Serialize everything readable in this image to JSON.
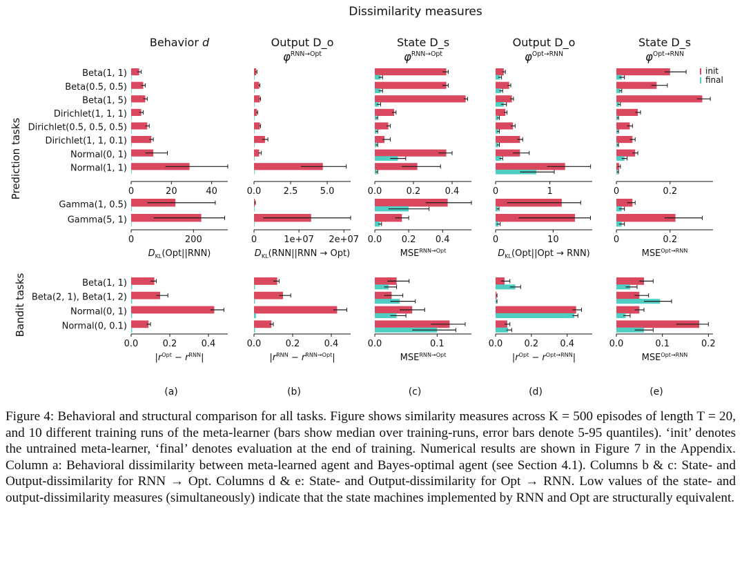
{
  "figure": {
    "title": "Dissimilarity measures",
    "group_labels": [
      "Prediction tasks",
      "Bandit tasks"
    ],
    "legend": [
      "init",
      "final"
    ],
    "colors": {
      "init": "#d9485e",
      "final": "#4fcfc4",
      "error": "#1a1a1a"
    }
  },
  "chart_data": [
    {
      "type": "bar",
      "orientation": "horizontal",
      "panel": "(a)",
      "row": "prediction",
      "header": "Behavior d",
      "categories": [
        "Beta(1, 1)",
        "Beta(0.5, 0.5)",
        "Beta(1, 5)",
        "Dirichlet(1, 1, 1)",
        "Dirichlet(0.5, 0.5, 0.5)",
        "Dirichlet(1, 1, 0.1)",
        "Normal(0, 1)",
        "Normal(1, 1)"
      ],
      "series": [
        {
          "name": "init",
          "values": [
            4,
            6,
            7,
            5,
            8,
            10,
            11,
            29
          ],
          "error_low": [
            3,
            5,
            6,
            4,
            7,
            9,
            7,
            17
          ],
          "error_high": [
            5,
            7,
            8,
            6,
            9,
            11,
            18,
            49
          ]
        },
        {
          "name": "final",
          "values": [
            0,
            0,
            0,
            0,
            0,
            0,
            0,
            0
          ]
        }
      ],
      "xlim": [
        0,
        48
      ],
      "xticks": [
        "0",
        "20",
        "40"
      ],
      "xlabel": ""
    },
    {
      "type": "bar",
      "orientation": "horizontal",
      "panel": "(b)",
      "row": "prediction",
      "header": "Output D_o",
      "subheader": "φ RNN→Opt",
      "categories": [
        "Beta(1, 1)",
        "Beta(0.5, 0.5)",
        "Beta(1, 5)",
        "Dirichlet(1, 1, 1)",
        "Dirichlet(0.5, 0.5, 0.5)",
        "Dirichlet(1, 1, 0.1)",
        "Normal(0, 1)",
        "Normal(1, 1)"
      ],
      "series": [
        {
          "name": "init",
          "values": [
            0.15,
            0.35,
            0.4,
            0.2,
            0.4,
            0.75,
            0.35,
            4.7
          ],
          "error_low": [
            0.1,
            0.3,
            0.35,
            0.15,
            0.35,
            0.55,
            0.3,
            3.2
          ],
          "error_high": [
            0.2,
            0.4,
            0.45,
            0.25,
            0.45,
            0.95,
            0.5,
            6.3
          ]
        },
        {
          "name": "final",
          "values": [
            0,
            0,
            0,
            0,
            0,
            0,
            0,
            0
          ]
        }
      ],
      "xlim": [
        0,
        6.6
      ],
      "xticks": [
        "0.0",
        "2.5",
        "5.0"
      ],
      "xlabel": ""
    },
    {
      "type": "bar",
      "orientation": "horizontal",
      "panel": "(c)",
      "row": "prediction",
      "header": "State D_s",
      "subheader": "φ RNN→Opt",
      "categories": [
        "Beta(1, 1)",
        "Beta(0.5, 0.5)",
        "Beta(1, 5)",
        "Dirichlet(1, 1, 1)",
        "Dirichlet(0.5, 0.5, 0.5)",
        "Dirichlet(1, 1, 0.1)",
        "Normal(0, 1)",
        "Normal(1, 1)"
      ],
      "series": [
        {
          "name": "init",
          "values": [
            0.37,
            0.37,
            0.47,
            0.1,
            0.07,
            0.05,
            0.37,
            0.22
          ],
          "error_low": [
            0.35,
            0.35,
            0.46,
            0.09,
            0.06,
            0.04,
            0.33,
            0.14
          ],
          "error_high": [
            0.38,
            0.38,
            0.48,
            0.11,
            0.08,
            0.08,
            0.4,
            0.34
          ]
        },
        {
          "name": "final",
          "values": [
            0.03,
            0.03,
            0.02,
            0.01,
            0.01,
            0.01,
            0.12,
            0.01
          ],
          "error_low": [
            0.02,
            0.02,
            0.01,
            0.005,
            0.005,
            0.005,
            0.08,
            0.005
          ],
          "error_high": [
            0.04,
            0.04,
            0.03,
            0.015,
            0.015,
            0.015,
            0.16,
            0.015
          ]
        }
      ],
      "xlim": [
        0,
        0.5
      ],
      "xticks": [
        "0.0",
        "0.2",
        "0.4"
      ],
      "xlabel": ""
    },
    {
      "type": "bar",
      "orientation": "horizontal",
      "panel": "(d)",
      "row": "prediction",
      "header": "Output D_o",
      "subheader": "φ Opt→RNN",
      "categories": [
        "Beta(1, 1)",
        "Beta(0.5, 0.5)",
        "Beta(1, 5)",
        "Dirichlet(1, 1, 1)",
        "Dirichlet(0.5, 0.5, 0.5)",
        "Dirichlet(1, 1, 0.1)",
        "Normal(0, 1)",
        "Normal(1, 1)"
      ],
      "series": [
        {
          "name": "init",
          "values": [
            0.15,
            0.25,
            0.3,
            0.18,
            0.32,
            0.45,
            0.45,
            1.28
          ],
          "error_low": [
            0.12,
            0.22,
            0.27,
            0.15,
            0.28,
            0.4,
            0.32,
            0.95
          ],
          "error_high": [
            0.18,
            0.28,
            0.33,
            0.21,
            0.36,
            0.5,
            0.62,
            1.75
          ]
        },
        {
          "name": "final",
          "values": [
            0.08,
            0.1,
            0.15,
            0.05,
            0.05,
            0.05,
            0.1,
            0.75
          ],
          "error_low": [
            0.05,
            0.07,
            0.1,
            0.03,
            0.03,
            0.03,
            0.07,
            0.45
          ],
          "error_high": [
            0.11,
            0.13,
            0.2,
            0.07,
            0.07,
            0.07,
            0.13,
            1.08
          ]
        }
      ],
      "xlim": [
        0,
        1.78
      ],
      "xticks": [
        "0",
        "1"
      ],
      "xlabel": ""
    },
    {
      "type": "bar",
      "orientation": "horizontal",
      "panel": "(e)",
      "row": "prediction",
      "header": "State D_s",
      "subheader": "φ Opt→RNN",
      "categories": [
        "Beta(1, 1)",
        "Beta(0.5, 0.5)",
        "Beta(1, 5)",
        "Dirichlet(1, 1, 1)",
        "Dirichlet(0.5, 0.5, 0.5)",
        "Dirichlet(1, 1, 0.1)",
        "Normal(0, 1)",
        "Normal(1, 1)"
      ],
      "series": [
        {
          "name": "init",
          "values": [
            0.2,
            0.15,
            0.32,
            0.08,
            0.05,
            0.06,
            0.07,
            0.01
          ],
          "error_low": [
            0.18,
            0.13,
            0.3,
            0.07,
            0.04,
            0.05,
            0.06,
            0.005
          ],
          "error_high": [
            0.26,
            0.19,
            0.35,
            0.09,
            0.06,
            0.07,
            0.08,
            0.015
          ]
        },
        {
          "name": "final",
          "values": [
            0.02,
            0.015,
            0.01,
            0.005,
            0.005,
            0.005,
            0.03,
            0.005
          ],
          "error_low": [
            0.01,
            0.01,
            0.005,
            0.002,
            0.002,
            0.002,
            0.02,
            0.002
          ],
          "error_high": [
            0.03,
            0.02,
            0.015,
            0.008,
            0.008,
            0.008,
            0.04,
            0.008
          ]
        }
      ],
      "xlim": [
        0,
        0.36
      ],
      "xticks": [
        "0",
        "0.2"
      ],
      "xlabel": ""
    },
    {
      "type": "bar",
      "orientation": "horizontal",
      "panel": "(a)",
      "row": "gamma",
      "categories": [
        "Gamma(1, 0.5)",
        "Gamma(5, 1)"
      ],
      "series": [
        {
          "name": "init",
          "values": [
            142,
            225
          ],
          "error_low": [
            52,
            72
          ],
          "error_high": [
            270,
            300
          ]
        },
        {
          "name": "final",
          "values": [
            0,
            0
          ]
        }
      ],
      "xlim": [
        0,
        310
      ],
      "xticks": [
        "0",
        "200"
      ],
      "xlabel": "D_KL(Opt||RNN)"
    },
    {
      "type": "bar",
      "orientation": "horizontal",
      "panel": "(b)",
      "row": "gamma",
      "categories": [
        "Gamma(1, 0.5)",
        "Gamma(5, 1)"
      ],
      "series": [
        {
          "name": "init",
          "values": [
            200000,
            12700000
          ],
          "error_low": [
            100000,
            2000000
          ],
          "error_high": [
            300000,
            23000000
          ]
        },
        {
          "name": "final",
          "values": [
            0,
            0
          ]
        }
      ],
      "xlim": [
        0,
        21500000
      ],
      "xticks": [
        "0",
        "1e+07",
        "2e+07"
      ],
      "xlabel": "D_KL(RNN||RNN → Opt)"
    },
    {
      "type": "bar",
      "orientation": "horizontal",
      "panel": "(c)",
      "row": "gamma",
      "categories": [
        "Gamma(1, 0.5)",
        "Gamma(5, 1)"
      ],
      "series": [
        {
          "name": "init",
          "values": [
            0.43,
            0.16
          ],
          "error_low": [
            0.3,
            0.12
          ],
          "error_high": [
            0.57,
            0.2
          ]
        },
        {
          "name": "final",
          "values": [
            0.2,
            0.03
          ],
          "error_low": [
            0.08,
            0.02
          ],
          "error_high": [
            0.32,
            0.04
          ]
        }
      ],
      "xlim": [
        0,
        0.57
      ],
      "xticks": [
        "0.0",
        "0.2",
        "0.4"
      ],
      "xlabel": "MSE RNN→Opt"
    },
    {
      "type": "bar",
      "orientation": "horizontal",
      "panel": "(d)",
      "row": "gamma",
      "categories": [
        "Gamma(1, 0.5)",
        "Gamma(5, 1)"
      ],
      "series": [
        {
          "name": "init",
          "values": [
            11.5,
            13.8
          ],
          "error_low": [
            2,
            4
          ],
          "error_high": [
            14.8,
            16.5
          ]
        },
        {
          "name": "final",
          "values": [
            0.4,
            0.5
          ],
          "error_low": [
            0.2,
            0.2
          ],
          "error_high": [
            0.6,
            0.8
          ]
        }
      ],
      "xlim": [
        0,
        16.8
      ],
      "xticks": [
        "0",
        "10"
      ],
      "xlabel": "D_KL(Opt||Opt → RNN)"
    },
    {
      "type": "bar",
      "orientation": "horizontal",
      "panel": "(e)",
      "row": "gamma",
      "categories": [
        "Gamma(1, 0.5)",
        "Gamma(5, 1)"
      ],
      "series": [
        {
          "name": "init",
          "values": [
            0.06,
            0.22
          ],
          "error_low": [
            0.04,
            0.18
          ],
          "error_high": [
            0.07,
            0.32
          ]
        },
        {
          "name": "final",
          "values": [
            0.02,
            0.02
          ],
          "error_low": [
            0.01,
            0.01
          ],
          "error_high": [
            0.03,
            0.03
          ]
        }
      ],
      "xlim": [
        0,
        0.36
      ],
      "xticks": [
        "0",
        "0.2"
      ],
      "xlabel": "MSE Opt→RNN"
    },
    {
      "type": "bar",
      "orientation": "horizontal",
      "panel": "(a)",
      "row": "bandit",
      "categories": [
        "Beta(1, 1)",
        "Beta(2, 1), Beta(1, 2)",
        "Normal(0, 1)",
        "Normal(0, 0.1)"
      ],
      "series": [
        {
          "name": "init",
          "values": [
            0.12,
            0.15,
            0.43,
            0.09
          ],
          "error_low": [
            0.1,
            0.13,
            0.41,
            0.08
          ],
          "error_high": [
            0.13,
            0.19,
            0.48,
            0.1
          ]
        },
        {
          "name": "final",
          "values": [
            0.005,
            0.005,
            0.005,
            0.005
          ]
        }
      ],
      "xlim": [
        0,
        0.5
      ],
      "xticks": [
        "0.0",
        "0.2",
        "0.4"
      ],
      "xlabel": "|r Opt − r RNN|"
    },
    {
      "type": "bar",
      "orientation": "horizontal",
      "panel": "(b)",
      "row": "bandit",
      "categories": [
        "Beta(1, 1)",
        "Beta(2, 1), Beta(1, 2)",
        "Normal(0, 1)",
        "Normal(0, 0.1)"
      ],
      "series": [
        {
          "name": "init",
          "values": [
            0.12,
            0.15,
            0.43,
            0.09
          ],
          "error_low": [
            0.1,
            0.13,
            0.41,
            0.08
          ],
          "error_high": [
            0.13,
            0.19,
            0.48,
            0.1
          ]
        },
        {
          "name": "final",
          "values": [
            0.005,
            0.005,
            0.01,
            0.005
          ]
        }
      ],
      "xlim": [
        0,
        0.5
      ],
      "xticks": [
        "0.0",
        "0.2",
        "0.4"
      ],
      "xlabel": "|r RNN − r RNN→Opt|"
    },
    {
      "type": "bar",
      "orientation": "horizontal",
      "panel": "(c)",
      "row": "bandit",
      "categories": [
        "Beta(1, 1)",
        "Beta(2, 1), Beta(1, 2)",
        "Normal(0, 1)",
        "Normal(0, 0.1)"
      ],
      "series": [
        {
          "name": "init",
          "values": [
            0.035,
            0.027,
            0.06,
            0.12
          ],
          "error_low": [
            0.02,
            0.015,
            0.04,
            0.09
          ],
          "error_high": [
            0.055,
            0.045,
            0.08,
            0.145
          ]
        },
        {
          "name": "final",
          "values": [
            0.022,
            0.04,
            0.035,
            0.1
          ],
          "error_low": [
            0.015,
            0.025,
            0.025,
            0.06
          ],
          "error_high": [
            0.035,
            0.065,
            0.05,
            0.13
          ]
        }
      ],
      "xlim": [
        0,
        0.155
      ],
      "xticks": [
        "0.0",
        "0.1"
      ],
      "xlabel": "MSE RNN→Opt"
    },
    {
      "type": "bar",
      "orientation": "horizontal",
      "panel": "(d)",
      "row": "bandit",
      "categories": [
        "Beta(1, 1)",
        "Beta(2, 1), Beta(1, 2)",
        "Normal(0, 1)",
        "Normal(0, 0.1)"
      ],
      "series": [
        {
          "name": "init",
          "values": [
            0.05,
            0.005,
            0.45,
            0.065
          ],
          "error_low": [
            0.03,
            0.003,
            0.43,
            0.05
          ],
          "error_high": [
            0.08,
            0.008,
            0.48,
            0.08
          ]
        },
        {
          "name": "final",
          "values": [
            0.11,
            0.005,
            0.44,
            0.07
          ],
          "error_low": [
            0.08,
            0.003,
            0.43,
            0.06
          ],
          "error_high": [
            0.14,
            0.008,
            0.46,
            0.09
          ]
        }
      ],
      "xlim": [
        0,
        0.54
      ],
      "xticks": [
        "0.0",
        "0.2",
        "0.4"
      ],
      "xlabel": "|r Opt − r Opt→RNN|"
    },
    {
      "type": "bar",
      "orientation": "horizontal",
      "panel": "(e)",
      "row": "bandit",
      "categories": [
        "Beta(1, 1)",
        "Beta(2, 1), Beta(1, 2)",
        "Normal(0, 1)",
        "Normal(0, 0.1)"
      ],
      "series": [
        {
          "name": "init",
          "values": [
            0.06,
            0.05,
            0.05,
            0.18
          ],
          "error_low": [
            0.05,
            0.04,
            0.04,
            0.13
          ],
          "error_high": [
            0.08,
            0.07,
            0.06,
            0.2
          ]
        },
        {
          "name": "final",
          "values": [
            0.03,
            0.095,
            0.02,
            0.06
          ],
          "error_low": [
            0.02,
            0.06,
            0.015,
            0.04
          ],
          "error_high": [
            0.045,
            0.12,
            0.03,
            0.08
          ]
        }
      ],
      "xlim": [
        0,
        0.21
      ],
      "xticks": [
        "0.0",
        "0.1",
        "0.2"
      ],
      "xlabel": "MSE Opt→RNN"
    }
  ],
  "caption": {
    "segments": [
      "Figure 4: Behavioral and structural comparison for all tasks. Figure shows similarity measures across K = 500 episodes of length T = 20, and 10 different training runs of the meta-learner (bars show median over training-runs, error bars denote 5-95 quantiles). ",
      "‘init’ denotes the untrained meta-learner, ‘final’ denotes evaluation at the end of training. Numerical results are shown in Figure 7 in the Appendix. ",
      "Column a: Behavioral dissimilarity between meta-learned agent and Bayes-optimal agent (see Section 4.1). Columns b & c: State- and Output-dissimilarity for RNN → Opt. Columns d & e: State- and Output-dissimilarity for Opt → RNN. ",
      "Low values of the state- and output-dissimilarity measures (simultaneously) indicate that the state machines implemented by RNN and Opt are structurally equivalent."
    ]
  }
}
